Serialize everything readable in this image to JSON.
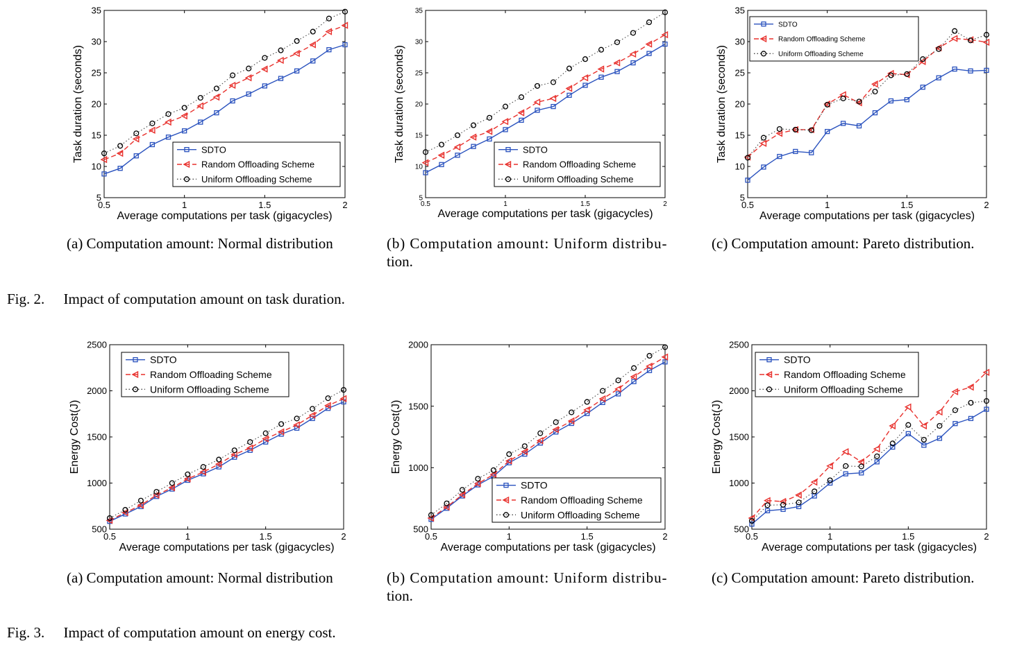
{
  "figures": [
    {
      "label": "Fig. 2.",
      "caption": "Impact of computation amount on task duration."
    },
    {
      "label": "Fig. 3.",
      "caption": "Impact of computation amount on energy cost."
    }
  ],
  "subcaptions": [
    "(a) Computation amount: Normal distribution",
    "(b) Computation amount: Uniform distribu-tion.",
    "(c) Computation amount: Pareto distribution.",
    "(a) Computation amount: Normal distribution",
    "(b) Computation amount: Uniform distribu-tion.",
    "(c) Computation amount: Pareto distribution."
  ],
  "subcaption_lines": [
    [
      "(a) Computation amount: Normal distribution"
    ],
    [
      "(b) Computation amount: Uniform distribu-",
      "tion."
    ],
    [
      "(c) Computation amount: Pareto distribution."
    ],
    [
      "(a) Computation amount: Normal distribution"
    ],
    [
      "(b) Computation amount: Uniform distribu-",
      "tion."
    ],
    [
      "(c) Computation amount: Pareto distribution."
    ]
  ],
  "colors": {
    "sdto": "#2a52be",
    "random": "#e8302c",
    "uniform": "#555555"
  },
  "chart_data": [
    {
      "type": "line",
      "xlabel": "Average computations per task (gigacycles)",
      "ylabel": "Task duration (seconds)",
      "xlim": [
        0.5,
        2
      ],
      "ylim": [
        5,
        35
      ],
      "xticks": [
        0.5,
        1,
        1.5,
        2
      ],
      "xtick_labels": [
        "0.5",
        "1",
        "1.5",
        "2"
      ],
      "yticks": [
        5,
        10,
        15,
        20,
        25,
        30,
        35
      ],
      "ytick_labels": [
        "5",
        "10",
        "15",
        "20",
        "25",
        "30",
        "35"
      ],
      "legend": "bottom-right",
      "x": [
        0.5,
        0.6,
        0.7,
        0.8,
        0.9,
        1.0,
        1.1,
        1.2,
        1.3,
        1.4,
        1.5,
        1.6,
        1.7,
        1.8,
        1.9,
        2.0
      ],
      "series": [
        {
          "name": "SDTO",
          "values": [
            8.8,
            9.7,
            11.7,
            13.5,
            14.7,
            15.7,
            17.1,
            18.6,
            20.5,
            21.6,
            22.9,
            24.1,
            25.3,
            26.9,
            28.7,
            29.5
          ]
        },
        {
          "name": "Random Offloading Scheme",
          "values": [
            11.1,
            12.1,
            14.4,
            15.8,
            17.1,
            18.1,
            19.7,
            21.1,
            23.0,
            24.2,
            25.6,
            27.0,
            28.1,
            29.5,
            31.6,
            32.6
          ]
        },
        {
          "name": "Uniform Offloading Scheme",
          "values": [
            12.1,
            13.3,
            15.3,
            16.9,
            18.4,
            19.4,
            21.0,
            22.5,
            24.6,
            25.7,
            27.4,
            28.6,
            30.1,
            31.6,
            33.7,
            34.8
          ]
        }
      ]
    },
    {
      "type": "line",
      "xlabel": "Average computations per task (gigacycles)",
      "ylabel": "Task duration (seconds)",
      "xlim": [
        0.5,
        2
      ],
      "ylim": [
        5,
        35
      ],
      "xticks": [
        0.5,
        1,
        1.5,
        2
      ],
      "xtick_labels": [
        "0.5",
        "1",
        "1.5",
        "2"
      ],
      "yticks": [
        5,
        10,
        15,
        20,
        25,
        30,
        35
      ],
      "ytick_labels": [
        "5",
        "10",
        "15",
        "20",
        "25",
        "30",
        "35"
      ],
      "legend": "bottom-right",
      "x": [
        0.5,
        0.6,
        0.7,
        0.8,
        0.9,
        1.0,
        1.1,
        1.2,
        1.3,
        1.4,
        1.5,
        1.6,
        1.7,
        1.8,
        1.9,
        2.0
      ],
      "series": [
        {
          "name": "SDTO",
          "values": [
            9.0,
            10.3,
            11.8,
            13.2,
            14.4,
            15.9,
            17.4,
            19.0,
            19.6,
            21.4,
            23.0,
            24.3,
            25.2,
            26.6,
            28.1,
            29.6
          ]
        },
        {
          "name": "Random Offloading Scheme",
          "values": [
            10.6,
            11.8,
            13.1,
            14.7,
            15.6,
            17.2,
            18.6,
            20.3,
            20.9,
            22.5,
            24.2,
            25.6,
            26.6,
            28.0,
            29.6,
            31.1
          ]
        },
        {
          "name": "Uniform Offloading Scheme",
          "values": [
            12.3,
            13.5,
            15.0,
            16.6,
            17.8,
            19.6,
            21.1,
            22.9,
            23.5,
            25.7,
            27.2,
            28.7,
            29.9,
            31.4,
            33.1,
            34.7
          ]
        }
      ]
    },
    {
      "type": "line",
      "xlabel": "Average computations per task (gigacycles)",
      "ylabel": "Task duration (seconds)",
      "xlim": [
        0.5,
        2
      ],
      "ylim": [
        5,
        35
      ],
      "xticks": [
        0.5,
        1,
        1.5,
        2
      ],
      "xtick_labels": [
        "0.5",
        "1",
        "1.5",
        "2"
      ],
      "yticks": [
        5,
        10,
        15,
        20,
        25,
        30,
        35
      ],
      "ytick_labels": [
        "5",
        "10",
        "15",
        "20",
        "25",
        "30",
        "35"
      ],
      "legend": "top-left",
      "x": [
        0.5,
        0.6,
        0.7,
        0.8,
        0.9,
        1.0,
        1.1,
        1.2,
        1.3,
        1.4,
        1.5,
        1.6,
        1.7,
        1.8,
        1.9,
        2.0
      ],
      "series": [
        {
          "name": "SDTO",
          "values": [
            7.8,
            9.9,
            11.6,
            12.4,
            12.2,
            15.6,
            16.9,
            16.5,
            18.6,
            20.5,
            20.7,
            22.7,
            24.2,
            25.6,
            25.3,
            25.4
          ]
        },
        {
          "name": "Random Offloading Scheme",
          "values": [
            11.5,
            13.7,
            15.3,
            15.9,
            15.9,
            20.0,
            21.5,
            20.2,
            23.2,
            24.9,
            24.7,
            26.8,
            29.0,
            30.5,
            30.3,
            29.9
          ]
        },
        {
          "name": "Uniform Offloading Scheme",
          "values": [
            11.4,
            14.6,
            16.0,
            15.9,
            15.8,
            19.9,
            20.9,
            20.4,
            22.0,
            24.6,
            24.8,
            27.2,
            28.8,
            31.7,
            30.2,
            31.1
          ]
        }
      ]
    },
    {
      "type": "line",
      "xlabel": "Average computations per task (gigacycles)",
      "ylabel": "Energy Cost(J)",
      "xlim": [
        0.5,
        2
      ],
      "ylim": [
        500,
        2500
      ],
      "xticks": [
        0.5,
        1,
        1.5,
        2
      ],
      "xtick_labels": [
        "0.5",
        "1",
        "1.5",
        "2"
      ],
      "yticks": [
        500,
        1000,
        1500,
        2000,
        2500
      ],
      "ytick_labels": [
        "500",
        "1000",
        "1500",
        "2000",
        "2500"
      ],
      "legend": "top-left",
      "x": [
        0.5,
        0.6,
        0.7,
        0.8,
        0.9,
        1.0,
        1.1,
        1.2,
        1.3,
        1.4,
        1.5,
        1.6,
        1.7,
        1.8,
        1.9,
        2.0
      ],
      "series": [
        {
          "name": "SDTO",
          "values": [
            585,
            665,
            745,
            855,
            935,
            1030,
            1100,
            1175,
            1280,
            1355,
            1445,
            1530,
            1595,
            1700,
            1810,
            1880
          ]
        },
        {
          "name": "Random Offloading Scheme",
          "values": [
            595,
            680,
            760,
            870,
            950,
            1045,
            1120,
            1205,
            1310,
            1380,
            1480,
            1555,
            1630,
            1735,
            1840,
            1915
          ]
        },
        {
          "name": "Uniform Offloading Scheme",
          "values": [
            620,
            710,
            810,
            905,
            1000,
            1095,
            1175,
            1255,
            1355,
            1445,
            1540,
            1640,
            1700,
            1805,
            1920,
            2010
          ]
        }
      ]
    },
    {
      "type": "line",
      "xlabel": "Average computations per task (gigacycles)",
      "ylabel": "Energy Cost(J)",
      "xlim": [
        0.5,
        2
      ],
      "ylim": [
        500,
        2000
      ],
      "xticks": [
        0.5,
        1,
        1.5,
        2
      ],
      "xtick_labels": [
        "0.5",
        "1",
        "1.5",
        "2"
      ],
      "yticks": [
        500,
        1000,
        1500,
        2000
      ],
      "ytick_labels": [
        "500",
        "1000",
        "1500",
        "2000"
      ],
      "legend": "bottom-right",
      "x": [
        0.5,
        0.6,
        0.7,
        0.8,
        0.9,
        1.0,
        1.1,
        1.2,
        1.3,
        1.4,
        1.5,
        1.6,
        1.7,
        1.8,
        1.9,
        2.0
      ],
      "series": [
        {
          "name": "SDTO",
          "values": [
            580,
            670,
            770,
            860,
            930,
            1040,
            1110,
            1200,
            1290,
            1360,
            1440,
            1530,
            1600,
            1700,
            1790,
            1860
          ]
        },
        {
          "name": "Random Offloading Scheme",
          "values": [
            590,
            680,
            780,
            870,
            945,
            1055,
            1130,
            1220,
            1310,
            1380,
            1470,
            1560,
            1640,
            1740,
            1825,
            1900
          ]
        },
        {
          "name": "Uniform Offloading Scheme",
          "values": [
            615,
            710,
            820,
            910,
            980,
            1110,
            1175,
            1280,
            1370,
            1450,
            1535,
            1625,
            1710,
            1810,
            1910,
            1980
          ]
        }
      ]
    },
    {
      "type": "line",
      "xlabel": "Average computations per task (gigacycles)",
      "ylabel": "Energy Cost(J)",
      "xlim": [
        0.5,
        2
      ],
      "ylim": [
        500,
        2500
      ],
      "xticks": [
        0.5,
        1,
        1.5,
        2
      ],
      "xtick_labels": [
        "0.5",
        "1",
        "1.5",
        "2"
      ],
      "yticks": [
        500,
        1000,
        1500,
        2000,
        2500
      ],
      "ytick_labels": [
        "500",
        "1000",
        "1500",
        "2000",
        "2500"
      ],
      "legend": "top-left",
      "x": [
        0.5,
        0.6,
        0.7,
        0.8,
        0.9,
        1.0,
        1.1,
        1.2,
        1.3,
        1.4,
        1.5,
        1.6,
        1.7,
        1.8,
        1.9,
        2.0
      ],
      "series": [
        {
          "name": "SDTO",
          "values": [
            555,
            700,
            715,
            745,
            860,
            1000,
            1100,
            1110,
            1230,
            1390,
            1535,
            1410,
            1485,
            1645,
            1700,
            1800
          ]
        },
        {
          "name": "Random Offloading Scheme",
          "values": [
            620,
            810,
            800,
            870,
            1010,
            1185,
            1340,
            1230,
            1370,
            1620,
            1825,
            1620,
            1770,
            1990,
            2040,
            2200
          ]
        },
        {
          "name": "Uniform Offloading Scheme",
          "values": [
            590,
            760,
            765,
            790,
            910,
            1030,
            1185,
            1180,
            1290,
            1430,
            1630,
            1470,
            1620,
            1790,
            1870,
            1890
          ]
        }
      ]
    }
  ]
}
